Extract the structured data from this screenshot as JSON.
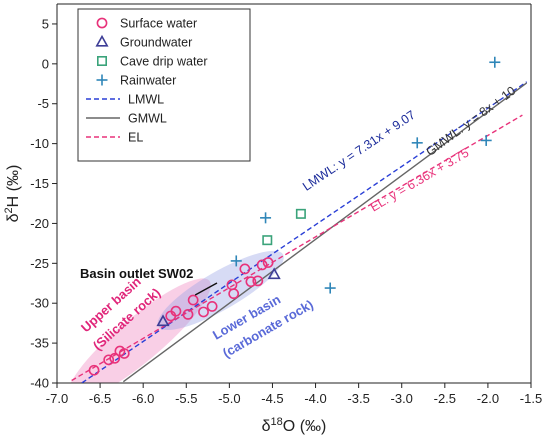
{
  "chart_data": {
    "type": "scatter",
    "xlabel": "δ18O (‰)",
    "ylabel": "δ2H (‰)",
    "xlim": [
      -7.0,
      -1.5
    ],
    "ylim": [
      -40,
      7.5
    ],
    "x_ticks": [
      -7.0,
      -6.5,
      -6.0,
      -5.5,
      -5.0,
      -4.5,
      -4.0,
      -3.5,
      -3.0,
      -2.5,
      -2.0,
      -1.5
    ],
    "y_ticks": [
      -40,
      -35,
      -30,
      -25,
      -20,
      -15,
      -10,
      -5,
      0,
      5
    ],
    "x_tick_labels": [
      "-7.0",
      "-6.5",
      "-6.0",
      "-5.5",
      "-5.0",
      "-4.5",
      "-4.0",
      "-3.5",
      "-3.0",
      "-2.5",
      "-2.0",
      "-1.5"
    ],
    "y_tick_labels": [
      "-40",
      "-35",
      "-30",
      "-25",
      "-20",
      "-15",
      "-10",
      "-5",
      "0",
      "5"
    ],
    "legend_position": "top-left",
    "series": [
      {
        "name": "Surface water",
        "marker": "circle",
        "color": "#e8327a",
        "points": [
          [
            -6.57,
            -38.4
          ],
          [
            -6.4,
            -37.1
          ],
          [
            -6.33,
            -36.9
          ],
          [
            -6.22,
            -36.3
          ],
          [
            -6.27,
            -36.0
          ],
          [
            -5.68,
            -31.6
          ],
          [
            -5.62,
            -31.0
          ],
          [
            -5.48,
            -31.4
          ],
          [
            -5.42,
            -29.6
          ],
          [
            -5.3,
            -31.1
          ],
          [
            -5.2,
            -30.4
          ],
          [
            -4.97,
            -27.7
          ],
          [
            -4.95,
            -28.8
          ],
          [
            -4.82,
            -25.7
          ],
          [
            -4.75,
            -27.3
          ],
          [
            -4.67,
            -27.2
          ],
          [
            -4.62,
            -25.2
          ],
          [
            -4.55,
            -24.9
          ]
        ]
      },
      {
        "name": "Groundwater",
        "marker": "triangle",
        "color": "#3d3d96",
        "points": [
          [
            -5.77,
            -32.3
          ],
          [
            -4.48,
            -26.4
          ]
        ]
      },
      {
        "name": "Cave drip water",
        "marker": "square",
        "color": "#3aa37a",
        "points": [
          [
            -4.56,
            -22.1
          ],
          [
            -4.17,
            -18.8
          ]
        ]
      },
      {
        "name": "Rainwater",
        "marker": "plus",
        "color": "#2f86b8",
        "points": [
          [
            -4.92,
            -24.7
          ],
          [
            -4.58,
            -19.3
          ],
          [
            -3.83,
            -28.1
          ],
          [
            -2.82,
            -9.9
          ],
          [
            -2.02,
            -9.6
          ],
          [
            -1.92,
            0.2
          ]
        ]
      }
    ],
    "lines": [
      {
        "name": "LMWL",
        "slope": 7.31,
        "intercept": 9.07,
        "color": "#2a3fd6",
        "dash": "dashed",
        "x_range": [
          -6.71,
          -1.55
        ],
        "equation": "LMWL: y = 7.31x + 9.07"
      },
      {
        "name": "GMWL",
        "slope": 8,
        "intercept": 10,
        "color": "#666666",
        "dash": "solid",
        "x_range": [
          -6.23,
          -1.55
        ],
        "equation": "GMWL: y = 8x + 10"
      },
      {
        "name": "EL",
        "slope": 6.36,
        "intercept": 3.75,
        "color": "#e8327a",
        "dash": "dashed",
        "x_range": [
          -6.83,
          -1.6
        ],
        "equation": "EL: y = 6.36x + 3.75"
      }
    ],
    "annotations": {
      "basin_outlet": "Basin outlet SW02",
      "upper_basin_line1": "Upper basin",
      "upper_basin_line2": "(Silicate rock)",
      "lower_basin_line1": "Lower basin",
      "lower_basin_line2": "(carbonate rock)"
    }
  }
}
